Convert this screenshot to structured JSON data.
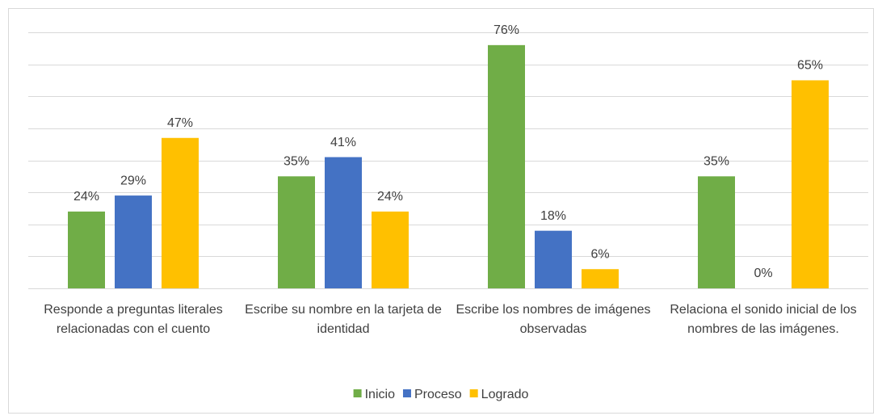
{
  "chart_data": {
    "type": "bar",
    "categories": [
      "Responde a preguntas literales relacionadas con el cuento",
      "Escribe su nombre en la tarjeta de identidad",
      "Escribe los nombres de imágenes observadas",
      "Relaciona el sonido inicial de los nombres de las imágenes."
    ],
    "series": [
      {
        "name": "Inicio",
        "color": "#70ad47",
        "values": [
          24,
          35,
          76,
          35
        ],
        "value_labels": [
          "24%",
          "35%",
          "76%",
          "35%"
        ]
      },
      {
        "name": "Proceso",
        "color": "#4472c4",
        "values": [
          29,
          41,
          18,
          0
        ],
        "value_labels": [
          "29%",
          "41%",
          "18%",
          "0%"
        ]
      },
      {
        "name": "Logrado",
        "color": "#ffc000",
        "values": [
          47,
          24,
          6,
          65
        ],
        "value_labels": [
          "47%",
          "24%",
          "6%",
          "65%"
        ]
      }
    ],
    "ylim": [
      0,
      80
    ],
    "yticks": [
      0,
      10,
      20,
      30,
      40,
      50,
      60,
      70,
      80
    ],
    "grid": true,
    "legend": "bottom"
  }
}
